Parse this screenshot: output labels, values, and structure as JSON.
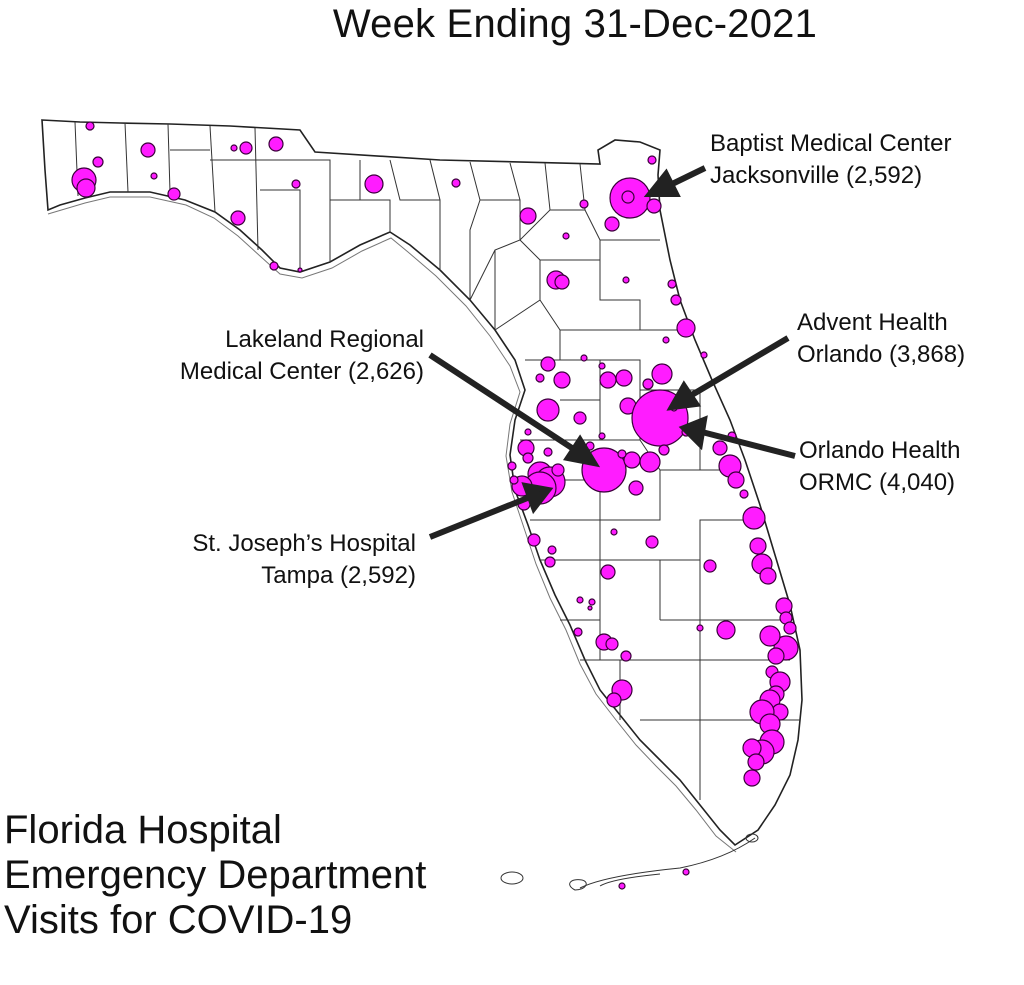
{
  "title": "Week Ending 31-Dec-2021",
  "caption": [
    "Florida Hospital",
    "Emergency Department",
    "Visits for COVID-19"
  ],
  "colors": {
    "marker_fill": "#ff1cff",
    "marker_stroke": "#3a003a",
    "county_line": "#222222",
    "arrow": "#222222"
  },
  "callouts": [
    {
      "id": "baptist",
      "lines": [
        "Baptist Medical Center",
        "Jacksonville (2,592)"
      ]
    },
    {
      "id": "lakeland",
      "lines": [
        "Lakeland Regional",
        "Medical Center (2,626)"
      ]
    },
    {
      "id": "advent",
      "lines": [
        "Advent Health",
        "Orlando (3,868)"
      ]
    },
    {
      "id": "ormc",
      "lines": [
        "Orlando Health",
        "ORMC (4,040)"
      ]
    },
    {
      "id": "stjoseph",
      "lines": [
        "St. Joseph’s Hospital",
        "Tampa (2,592)"
      ]
    }
  ]
}
